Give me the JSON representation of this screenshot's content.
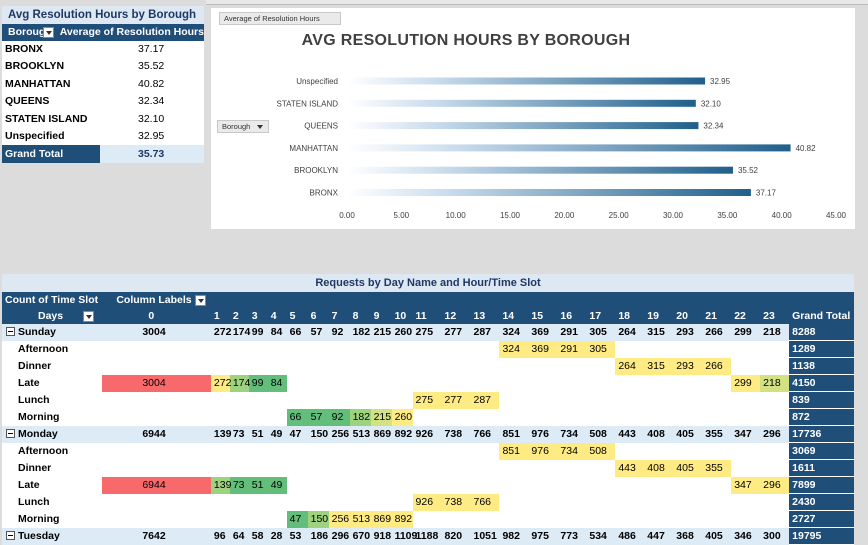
{
  "pivot_avg": {
    "title": "Avg Resolution Hours by Borough",
    "col_borough": "Borough",
    "col_value": "Average of Resolution Hours",
    "rows": [
      {
        "label": "BRONX",
        "value": "37.17"
      },
      {
        "label": "BROOKLYN",
        "value": "35.52"
      },
      {
        "label": "MANHATTAN",
        "value": "40.82"
      },
      {
        "label": "QUEENS",
        "value": "32.34"
      },
      {
        "label": "STATEN ISLAND",
        "value": "32.10"
      },
      {
        "label": "Unspecified",
        "value": "32.95"
      }
    ],
    "total_label": "Grand Total",
    "total_value": "35.73"
  },
  "chart": {
    "field_button": "Average of Resolution Hours",
    "axis_button": "Borough",
    "colors": {
      "bar": "#1f5f8b",
      "bar_light": "#e8f1f8"
    }
  },
  "chart_data": {
    "type": "bar",
    "orientation": "horizontal",
    "title": "AVG RESOLUTION HOURS BY BOROUGH",
    "categories": [
      "Unspecified",
      "STATEN ISLAND",
      "QUEENS",
      "MANHATTAN",
      "BROOKLYN",
      "BRONX"
    ],
    "values": [
      32.95,
      32.1,
      32.34,
      40.82,
      35.52,
      37.17
    ],
    "value_labels": [
      "32.95",
      "32.10",
      "32.34",
      "40.82",
      "35.52",
      "37.17"
    ],
    "xlim": [
      0,
      45
    ],
    "ticks": [
      "0.00",
      "5.00",
      "10.00",
      "15.00",
      "20.00",
      "25.00",
      "30.00",
      "35.00",
      "40.00",
      "45.00"
    ],
    "grid": false,
    "legend": "none"
  },
  "heatmap": {
    "title": "Requests by Day Name and Hour/Time Slot",
    "corner_label": "Count of Time Slot",
    "column_labels": "Column Labels",
    "row_header": "Days",
    "hours": [
      "0",
      "1",
      "2",
      "3",
      "4",
      "5",
      "6",
      "7",
      "8",
      "9",
      "10",
      "11",
      "12",
      "13",
      "14",
      "15",
      "16",
      "17",
      "18",
      "19",
      "20",
      "21",
      "22",
      "23"
    ],
    "grand_total_label": "Grand Total",
    "rows": [
      {
        "label": "Sunday",
        "type": "day",
        "values": [
          "3004",
          "272",
          "174",
          "99",
          "84",
          "66",
          "57",
          "92",
          "182",
          "215",
          "260",
          "275",
          "277",
          "287",
          "324",
          "369",
          "291",
          "305",
          "264",
          "315",
          "293",
          "266",
          "299",
          "218"
        ],
        "total": "8288"
      },
      {
        "label": "Afternoon",
        "type": "slot",
        "values": [
          "",
          "",
          "",
          "",
          "",
          "",
          "",
          "",
          "",
          "",
          "",
          "",
          "",
          "",
          "324",
          "369",
          "291",
          "305",
          "",
          "",
          "",
          "",
          "",
          ""
        ],
        "total": "1289"
      },
      {
        "label": "Dinner",
        "type": "slot",
        "values": [
          "",
          "",
          "",
          "",
          "",
          "",
          "",
          "",
          "",
          "",
          "",
          "",
          "",
          "",
          "",
          "",
          "",
          "",
          "264",
          "315",
          "293",
          "266",
          "",
          ""
        ],
        "total": "1138"
      },
      {
        "label": "Late",
        "type": "slot",
        "values": [
          "3004",
          "272",
          "174",
          "99",
          "84",
          "",
          "",
          "",
          "",
          "",
          "",
          "",
          "",
          "",
          "",
          "",
          "",
          "",
          "",
          "",
          "",
          "",
          "299",
          "218"
        ],
        "total": "4150"
      },
      {
        "label": "Lunch",
        "type": "slot",
        "values": [
          "",
          "",
          "",
          "",
          "",
          "",
          "",
          "",
          "",
          "",
          "",
          "275",
          "277",
          "287",
          "",
          "",
          "",
          "",
          "",
          "",
          "",
          "",
          "",
          ""
        ],
        "total": "839"
      },
      {
        "label": "Morning",
        "type": "slot",
        "values": [
          "",
          "",
          "",
          "",
          "",
          "66",
          "57",
          "92",
          "182",
          "215",
          "260",
          "",
          "",
          "",
          "",
          "",
          "",
          "",
          "",
          "",
          "",
          "",
          "",
          ""
        ],
        "total": "872"
      },
      {
        "label": "Monday",
        "type": "day",
        "values": [
          "6944",
          "139",
          "73",
          "51",
          "49",
          "47",
          "150",
          "256",
          "513",
          "869",
          "892",
          "926",
          "738",
          "766",
          "851",
          "976",
          "734",
          "508",
          "443",
          "408",
          "405",
          "355",
          "347",
          "296"
        ],
        "total": "17736"
      },
      {
        "label": "Afternoon",
        "type": "slot",
        "values": [
          "",
          "",
          "",
          "",
          "",
          "",
          "",
          "",
          "",
          "",
          "",
          "",
          "",
          "",
          "851",
          "976",
          "734",
          "508",
          "",
          "",
          "",
          "",
          "",
          ""
        ],
        "total": "3069"
      },
      {
        "label": "Dinner",
        "type": "slot",
        "values": [
          "",
          "",
          "",
          "",
          "",
          "",
          "",
          "",
          "",
          "",
          "",
          "",
          "",
          "",
          "",
          "",
          "",
          "",
          "443",
          "408",
          "405",
          "355",
          "",
          ""
        ],
        "total": "1611"
      },
      {
        "label": "Late",
        "type": "slot",
        "values": [
          "6944",
          "139",
          "73",
          "51",
          "49",
          "",
          "",
          "",
          "",
          "",
          "",
          "",
          "",
          "",
          "",
          "",
          "",
          "",
          "",
          "",
          "",
          "",
          "347",
          "296"
        ],
        "total": "7899"
      },
      {
        "label": "Lunch",
        "type": "slot",
        "values": [
          "",
          "",
          "",
          "",
          "",
          "",
          "",
          "",
          "",
          "",
          "",
          "926",
          "738",
          "766",
          "",
          "",
          "",
          "",
          "",
          "",
          "",
          "",
          "",
          ""
        ],
        "total": "2430"
      },
      {
        "label": "Morning",
        "type": "slot",
        "values": [
          "",
          "",
          "",
          "",
          "",
          "47",
          "150",
          "256",
          "513",
          "869",
          "892",
          "",
          "",
          "",
          "",
          "",
          "",
          "",
          "",
          "",
          "",
          "",
          "",
          ""
        ],
        "total": "2727"
      },
      {
        "label": "Tuesday",
        "type": "day",
        "values": [
          "7642",
          "96",
          "64",
          "58",
          "28",
          "53",
          "186",
          "296",
          "670",
          "918",
          "1109",
          "1188",
          "820",
          "1051",
          "982",
          "975",
          "773",
          "534",
          "486",
          "447",
          "368",
          "405",
          "346",
          "300"
        ],
        "total": "19795"
      }
    ],
    "colors": {
      "red": "#f8696b",
      "yellow": "#ffeb84",
      "green": "#63be7b",
      "lightgreen": "#9fd27e",
      "yellowgreen": "#d3e182"
    }
  }
}
